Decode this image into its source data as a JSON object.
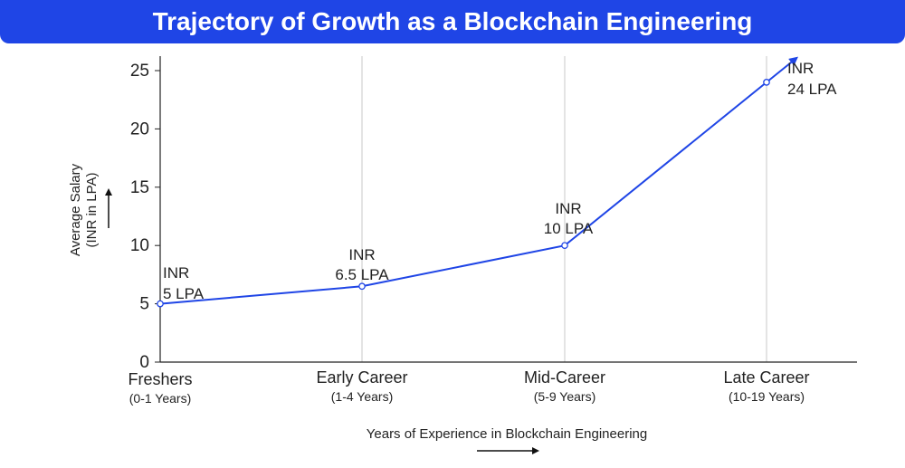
{
  "chart_data": {
    "type": "line",
    "title": "Trajectory of Growth as a Blockchain Engineering",
    "categories": [
      {
        "label": "Freshers",
        "sub": "(0-1 Years)"
      },
      {
        "label": "Early Career",
        "sub": "(1-4 Years)"
      },
      {
        "label": "Mid-Career",
        "sub": "(5-9 Years)"
      },
      {
        "label": "Late Career",
        "sub": "(10-19 Years)"
      }
    ],
    "values": [
      5,
      6.5,
      10,
      24
    ],
    "data_labels": [
      [
        "INR",
        "5 LPA"
      ],
      [
        "INR",
        "6.5 LPA"
      ],
      [
        "INR",
        "10 LPA"
      ],
      [
        "INR",
        "24 LPA"
      ]
    ],
    "xlabel": "Years of Experience in Blockchain Engineering",
    "ylabel": [
      "Average Salary",
      "(INR in LPA)"
    ],
    "ylim": [
      0,
      25
    ],
    "yticks": [
      0,
      5,
      10,
      15,
      20,
      25
    ],
    "grid": "vertical lines at categories",
    "line_color": "#1f45e6",
    "marker_fill": "#ffffff"
  }
}
